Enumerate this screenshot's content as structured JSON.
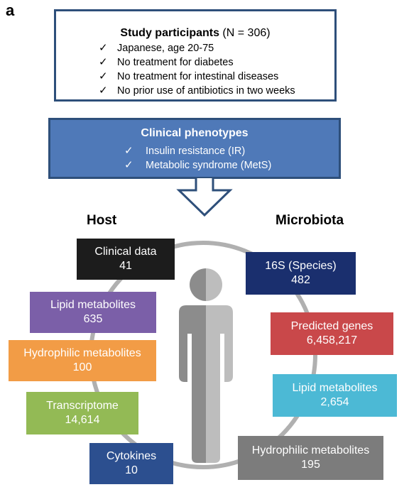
{
  "panel_label": "a",
  "study": {
    "title_bold": "Study participants",
    "title_rest": " (N = 306)",
    "criteria": [
      "Japanese, age 20-75",
      "No treatment for diabetes",
      "No treatment for intestinal diseases",
      "No prior use of antibiotics in two weeks"
    ]
  },
  "phenotypes": {
    "title": "Clinical phenotypes",
    "items": [
      "Insulin resistance (IR)",
      "Metabolic syndrome (MetS)"
    ]
  },
  "check_glyph": "✓",
  "host": {
    "label": "Host",
    "boxes": [
      {
        "name": "Clinical data",
        "value": "41",
        "color": "#1c1c1c"
      },
      {
        "name": "Lipid metabolites",
        "value": "635",
        "color": "#7b5fa8"
      },
      {
        "name": "Hydrophilic metabolites",
        "value": "100",
        "color": "#f29c46"
      },
      {
        "name": "Transcriptome",
        "value": "14,614",
        "color": "#93ba55"
      },
      {
        "name": "Cytokines",
        "value": "10",
        "color": "#2c4f8f"
      }
    ]
  },
  "microbiota": {
    "label": "Microbiota",
    "boxes": [
      {
        "name": "16S (Species)",
        "value": "482",
        "color": "#1a2f6e"
      },
      {
        "name": "Predicted genes",
        "value": "6,458,217",
        "color": "#c9484a"
      },
      {
        "name": "Lipid metabolites",
        "value": "2,654",
        "color": "#4cb9d5"
      },
      {
        "name": "Hydrophilic metabolites",
        "value": "195",
        "color": "#7c7c7c"
      }
    ]
  },
  "colors": {
    "study_border": "#2e4f7a",
    "phenotype_fill": "#4f79b8",
    "ring": "#b0b0b0",
    "human_dark": "#8c8c8c",
    "human_light": "#bdbdbd"
  },
  "icons": [
    "check-icon",
    "down-arrow-icon",
    "human-figure-icon"
  ]
}
